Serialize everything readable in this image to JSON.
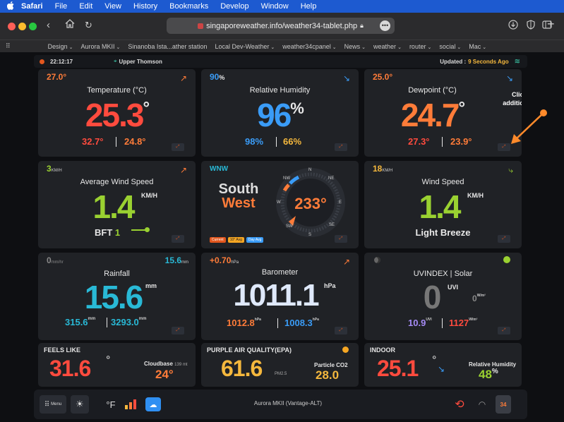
{
  "menubar": {
    "apple": "",
    "items": [
      "Safari",
      "File",
      "Edit",
      "View",
      "History",
      "Bookmarks",
      "Develop",
      "Window",
      "Help"
    ]
  },
  "toolbar": {
    "url": "singaporeweather.info/weather34-tablet.php",
    "more": "•••"
  },
  "bookmarks": [
    "Design",
    "Aurora MKII",
    "Sinanoba Ista...ather station",
    "Local Dev-Weather",
    "weather34cpanel",
    "News",
    "weather",
    "router",
    " social",
    " Mac"
  ],
  "status": {
    "time": "22:12:17",
    "location": "Upper Thomson",
    "updated_label": "Updated :",
    "updated_value": "9 Seconds Ago"
  },
  "temperature": {
    "corner": "27.0°",
    "title": "Temperature (°C)",
    "value": "25.3",
    "deg": "°",
    "high": "32.7°",
    "low": "24.8°"
  },
  "humidity": {
    "corner": "90",
    "corner_unit": "%",
    "title": "Relative Humidity",
    "value": "96",
    "unit": "%",
    "high": "98%",
    "low": "66%"
  },
  "dewpoint": {
    "corner": "25.0°",
    "title": "Dewpoint (°C)",
    "value": "24.7",
    "deg": "°",
    "high": "27.3°",
    "low": "23.9°"
  },
  "annotation": {
    "line1": "Click for",
    "line2": "additional info"
  },
  "avg_wind": {
    "corner": "3",
    "corner_unit": "KM/H",
    "title": "Average Wind Speed",
    "value": "1.4",
    "unit": "KM/H",
    "bft_label": "BFT",
    "bft_value": "1"
  },
  "compass": {
    "direction_code": "WNW",
    "line1": "South",
    "line2": "West",
    "degrees": "233°",
    "labels": [
      "N",
      "NE",
      "E",
      "SE",
      "S",
      "SW",
      "W",
      "NW"
    ],
    "legend": [
      "Current",
      "10° Avg",
      "Day Avg"
    ]
  },
  "wind_speed": {
    "corner": "18",
    "corner_unit": "KM/H",
    "title": "Wind Speed",
    "value": "1.4",
    "unit": "KM/H",
    "desc": "Light Breeze"
  },
  "rainfall": {
    "corner": "0",
    "corner_unit": "mm/hr",
    "corner_right": "15.6",
    "corner_right_unit": "mm",
    "title": "Rainfall",
    "value": "15.6",
    "unit": "mm",
    "month": "315.6",
    "month_unit": "mm",
    "year": "3293.0",
    "year_unit": "mm"
  },
  "barometer": {
    "corner": "+0.70",
    "corner_unit": "hPa",
    "title": "Barometer",
    "value": "1011.1",
    "unit": "hPa",
    "high": "1012.8",
    "high_unit": "hPa",
    "low": "1008.3",
    "low_unit": "hPa"
  },
  "uv": {
    "title": "UVINDEX | Solar",
    "value": "0",
    "unit": "UVI",
    "solar": "0",
    "solar_unit": "W/m²",
    "max_uv": "10.9",
    "max_uv_unit": "UVI",
    "max_solar": "1127",
    "max_solar_unit": "W/m²"
  },
  "feels_like": {
    "title": "FEELS LIKE",
    "value": "31.6",
    "deg": "°",
    "cloudbase_label": "Cloudbase",
    "cloudbase_small": "139 mt",
    "cloudbase_value": "24°"
  },
  "air_quality": {
    "title": "PURPLE AIR QUALITY(EPA)",
    "value": "61.6",
    "unit": "PM2.5",
    "co2_label": "Particle CO2",
    "co2_value": "28.0"
  },
  "indoor": {
    "title": "INDOOR",
    "value": "25.1",
    "deg": "°",
    "rh_label": "Relative Humidity",
    "rh_value": "48",
    "rh_unit": "%"
  },
  "bottombar": {
    "menu": "Menu",
    "units": "°F",
    "station": "Aurora MKII (Vantage-ALT)",
    "calendar_day": "34"
  }
}
